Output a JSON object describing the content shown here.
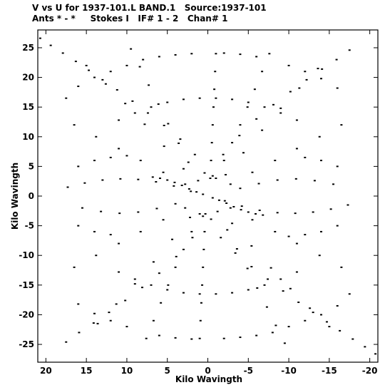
{
  "header": {
    "title": "V vs U for 1937-101.L BAND.1   Source:1937-101",
    "subtitle": "Ants * - *     Stokes I   IF# 1 - 2   Chan# 1"
  },
  "chart_data": {
    "type": "scatter",
    "title": "V vs U for 1937-101.L BAND.1   Source:1937-101",
    "subtitle": "Ants * - *     Stokes I   IF# 1 - 2   Chan# 1",
    "xlabel": "Kilo Wavingth",
    "ylabel": "Kilo Wavingth",
    "xlim": [
      21,
      -21
    ],
    "ylim": [
      -28,
      28
    ],
    "x_ticks": [
      20,
      15,
      10,
      5,
      0,
      -5,
      -10,
      -15,
      -20
    ],
    "x_tick_labels": [
      "20",
      "15",
      "10",
      "5",
      "0",
      "-5",
      "-10",
      "-15",
      "-20"
    ],
    "y_ticks": [
      25,
      20,
      15,
      10,
      5,
      0,
      -5,
      -10,
      -15,
      -20,
      -25
    ],
    "y_tick_labels": [
      "25",
      "20",
      "15",
      "10",
      "5",
      "0",
      "-5",
      "-10",
      "-15",
      "-20",
      "-25"
    ],
    "grid": false,
    "marker_color": "#000000",
    "series": [
      {
        "values": [
          [
            20.7,
            26.6
          ],
          [
            19.4,
            25.4
          ],
          [
            17.9,
            24.1
          ],
          [
            16.3,
            22.7
          ],
          [
            14.7,
            21.2
          ],
          [
            13.0,
            19.6
          ],
          [
            11.2,
            17.9
          ],
          [
            9.3,
            16.0
          ],
          [
            7.4,
            14.0
          ],
          [
            5.4,
            11.9
          ],
          [
            3.4,
            9.6
          ],
          [
            1.6,
            7.0
          ],
          [
            0.4,
            3.9
          ],
          [
            -0.4,
            -3.9
          ],
          [
            -1.6,
            -7.0
          ],
          [
            -3.4,
            -9.6
          ],
          [
            -5.4,
            -11.9
          ],
          [
            -7.4,
            -14.0
          ],
          [
            -9.3,
            -16.0
          ],
          [
            -11.2,
            -17.9
          ],
          [
            -13.0,
            -19.6
          ],
          [
            -14.7,
            -21.2
          ],
          [
            -16.3,
            -22.7
          ],
          [
            -17.9,
            -24.1
          ],
          [
            -19.4,
            -25.4
          ],
          [
            -20.7,
            -26.6
          ],
          [
            -17.5,
            24.6
          ],
          [
            -15.9,
            23.0
          ],
          [
            -14.1,
            21.4
          ],
          [
            -12.2,
            19.6
          ],
          [
            -10.2,
            17.6
          ],
          [
            -8.1,
            15.4
          ],
          [
            -6.0,
            13.0
          ],
          [
            -3.9,
            10.2
          ],
          [
            -1.9,
            7.0
          ],
          [
            -0.6,
            3.4
          ],
          [
            0.6,
            -3.4
          ],
          [
            1.9,
            -7.0
          ],
          [
            3.9,
            -10.2
          ],
          [
            6.0,
            -13.0
          ],
          [
            8.1,
            -15.4
          ],
          [
            10.2,
            -17.6
          ],
          [
            12.2,
            -19.6
          ],
          [
            14.1,
            -21.4
          ],
          [
            15.9,
            -23.0
          ],
          [
            17.5,
            -24.6
          ],
          [
            17.3,
            1.5
          ],
          [
            15.2,
            2.2
          ],
          [
            13.0,
            2.7
          ],
          [
            10.8,
            2.9
          ],
          [
            8.6,
            2.8
          ],
          [
            6.4,
            2.4
          ],
          [
            4.2,
            1.7
          ],
          [
            2.1,
            0.8
          ],
          [
            -2.1,
            -0.8
          ],
          [
            -4.2,
            -1.7
          ],
          [
            -6.4,
            -2.4
          ],
          [
            -8.6,
            -2.8
          ],
          [
            -10.8,
            -2.9
          ],
          [
            -13.0,
            -2.7
          ],
          [
            -15.2,
            -2.2
          ],
          [
            -17.3,
            -1.5
          ],
          [
            15.5,
            -2.0
          ],
          [
            13.2,
            -2.6
          ],
          [
            10.9,
            -2.9
          ],
          [
            8.6,
            -2.7
          ],
          [
            6.3,
            -2.1
          ],
          [
            4.0,
            -1.3
          ],
          [
            -4.0,
            1.3
          ],
          [
            -6.3,
            2.1
          ],
          [
            -8.6,
            2.7
          ],
          [
            -10.9,
            2.9
          ],
          [
            -13.2,
            2.6
          ],
          [
            -15.5,
            2.0
          ],
          [
            6.8,
            3.2
          ],
          [
            5.9,
            3.0
          ],
          [
            5.0,
            2.7
          ],
          [
            4.1,
            2.3
          ],
          [
            3.2,
            1.8
          ],
          [
            2.3,
            1.2
          ],
          [
            1.4,
            0.7
          ],
          [
            0.6,
            0.3
          ],
          [
            -0.6,
            -0.3
          ],
          [
            -1.4,
            -0.7
          ],
          [
            -2.3,
            -1.2
          ],
          [
            -3.2,
            -1.8
          ],
          [
            -4.1,
            -2.3
          ],
          [
            -5.0,
            -2.7
          ],
          [
            -5.9,
            -3.0
          ],
          [
            -6.8,
            -3.2
          ],
          [
            -1.0,
            24.0
          ],
          [
            -0.9,
            21.0
          ],
          [
            -0.8,
            18.0
          ],
          [
            -0.7,
            15.0
          ],
          [
            -0.6,
            12.0
          ],
          [
            -0.5,
            9.0
          ],
          [
            -0.4,
            6.0
          ],
          [
            -0.3,
            3.0
          ],
          [
            0.3,
            -3.0
          ],
          [
            0.4,
            -6.0
          ],
          [
            0.5,
            -9.0
          ],
          [
            0.6,
            -12.0
          ],
          [
            0.7,
            -15.0
          ],
          [
            0.8,
            -18.0
          ],
          [
            0.9,
            -21.0
          ],
          [
            1.0,
            -24.0
          ],
          [
            9.5,
            24.8
          ],
          [
            8.4,
            21.8
          ],
          [
            7.3,
            18.7
          ],
          [
            6.1,
            15.5
          ],
          [
            4.9,
            12.2
          ],
          [
            3.6,
            8.9
          ],
          [
            2.4,
            5.7
          ],
          [
            1.2,
            2.6
          ],
          [
            -1.2,
            -2.6
          ],
          [
            -2.4,
            -5.7
          ],
          [
            -3.6,
            -8.9
          ],
          [
            -4.9,
            -12.2
          ],
          [
            -6.1,
            -15.5
          ],
          [
            -7.3,
            -18.7
          ],
          [
            -8.4,
            -21.8
          ],
          [
            -9.5,
            -24.8
          ],
          [
            -7.6,
            24.0
          ],
          [
            -6.7,
            21.0
          ],
          [
            -5.8,
            18.0
          ],
          [
            -4.9,
            15.0
          ],
          [
            -4.0,
            12.0
          ],
          [
            -3.0,
            9.0
          ],
          [
            -2.0,
            6.0
          ],
          [
            -1.0,
            3.0
          ],
          [
            1.0,
            -3.0
          ],
          [
            2.0,
            -6.0
          ],
          [
            3.0,
            -9.0
          ],
          [
            4.0,
            -12.0
          ],
          [
            4.9,
            -15.0
          ],
          [
            5.8,
            -18.0
          ],
          [
            6.7,
            -21.0
          ],
          [
            7.6,
            -24.0
          ],
          [
            15.0,
            22.0
          ],
          [
            12.6,
            18.9
          ],
          [
            10.2,
            15.6
          ],
          [
            7.8,
            12.1
          ],
          [
            5.4,
            8.4
          ],
          [
            3.0,
            4.6
          ],
          [
            -3.0,
            -4.6
          ],
          [
            -5.4,
            -8.4
          ],
          [
            -7.8,
            -12.1
          ],
          [
            -10.2,
            -15.6
          ],
          [
            -12.6,
            -18.9
          ],
          [
            -15.0,
            -22.0
          ],
          [
            -13.6,
            21.5
          ],
          [
            -11.3,
            18.2
          ],
          [
            -9.0,
            14.8
          ],
          [
            -6.7,
            11.1
          ],
          [
            -4.4,
            7.3
          ],
          [
            -2.2,
            3.6
          ],
          [
            2.2,
            -3.6
          ],
          [
            4.4,
            -7.3
          ],
          [
            6.7,
            -11.1
          ],
          [
            9.0,
            -14.8
          ],
          [
            11.3,
            -18.2
          ],
          [
            13.6,
            -21.5
          ],
          [
            16.5,
            12.0
          ],
          [
            13.8,
            10.0
          ],
          [
            11.0,
            8.0
          ],
          [
            8.3,
            6.0
          ],
          [
            5.5,
            4.0
          ],
          [
            2.8,
            2.0
          ],
          [
            -2.8,
            -2.0
          ],
          [
            -5.5,
            -4.0
          ],
          [
            -8.3,
            -6.0
          ],
          [
            -11.0,
            -8.0
          ],
          [
            -13.8,
            -10.0
          ],
          [
            -16.5,
            -12.0
          ],
          [
            -16.5,
            12.0
          ],
          [
            -13.8,
            10.0
          ],
          [
            -11.0,
            8.0
          ],
          [
            -8.3,
            6.0
          ],
          [
            -5.5,
            4.0
          ],
          [
            -2.8,
            2.0
          ],
          [
            2.8,
            -2.0
          ],
          [
            5.5,
            -4.0
          ],
          [
            8.3,
            -6.0
          ],
          [
            11.0,
            -8.0
          ],
          [
            13.8,
            -10.0
          ],
          [
            16.5,
            -12.0
          ],
          [
            12.0,
            21.0
          ],
          [
            14.0,
            20.0
          ],
          [
            16.0,
            18.5
          ],
          [
            17.5,
            16.5
          ],
          [
            10.0,
            22.0
          ],
          [
            8.0,
            23.0
          ],
          [
            6.0,
            23.5
          ],
          [
            4.0,
            23.8
          ],
          [
            2.0,
            24.0
          ],
          [
            -2.0,
            24.1
          ],
          [
            -4.0,
            23.9
          ],
          [
            -6.0,
            23.5
          ],
          [
            -10.0,
            22.0
          ],
          [
            -12.0,
            21.0
          ],
          [
            -14.0,
            19.8
          ],
          [
            -16.0,
            18.2
          ],
          [
            -12.0,
            -21.0
          ],
          [
            -14.0,
            -20.0
          ],
          [
            -16.0,
            -18.5
          ],
          [
            -17.5,
            -16.5
          ],
          [
            -10.0,
            -22.0
          ],
          [
            -8.0,
            -23.0
          ],
          [
            -6.0,
            -23.5
          ],
          [
            -4.0,
            -23.8
          ],
          [
            -2.0,
            -24.0
          ],
          [
            2.0,
            -24.1
          ],
          [
            4.0,
            -23.9
          ],
          [
            6.0,
            -23.5
          ],
          [
            10.0,
            -22.0
          ],
          [
            12.0,
            -21.0
          ],
          [
            14.0,
            -19.8
          ],
          [
            16.0,
            -18.2
          ],
          [
            7.0,
            15.0
          ],
          [
            9.0,
            14.0
          ],
          [
            11.0,
            12.8
          ],
          [
            5.0,
            15.8
          ],
          [
            3.0,
            16.3
          ],
          [
            1.0,
            16.5
          ],
          [
            -1.0,
            16.5
          ],
          [
            -3.0,
            16.3
          ],
          [
            -5.0,
            15.8
          ],
          [
            -7.0,
            15.0
          ],
          [
            -9.0,
            14.0
          ],
          [
            -11.0,
            12.8
          ],
          [
            7.0,
            -15.0
          ],
          [
            9.0,
            -14.0
          ],
          [
            11.0,
            -12.8
          ],
          [
            5.0,
            -15.8
          ],
          [
            3.0,
            -16.3
          ],
          [
            1.0,
            -16.5
          ],
          [
            -1.0,
            -16.5
          ],
          [
            -3.0,
            -16.3
          ],
          [
            -5.0,
            -15.8
          ],
          [
            -7.0,
            -15.0
          ],
          [
            -9.0,
            -14.0
          ],
          [
            -11.0,
            -12.8
          ],
          [
            16.0,
            5.0
          ],
          [
            14.0,
            6.0
          ],
          [
            12.0,
            6.5
          ],
          [
            10.0,
            6.8
          ],
          [
            -16.0,
            -5.0
          ],
          [
            -14.0,
            -6.0
          ],
          [
            -12.0,
            -6.5
          ],
          [
            -10.0,
            -6.8
          ],
          [
            16.0,
            -5.0
          ],
          [
            14.0,
            -6.0
          ],
          [
            12.0,
            -6.5
          ],
          [
            -16.0,
            5.0
          ],
          [
            -14.0,
            6.0
          ],
          [
            -12.0,
            6.5
          ]
        ]
      }
    ]
  }
}
